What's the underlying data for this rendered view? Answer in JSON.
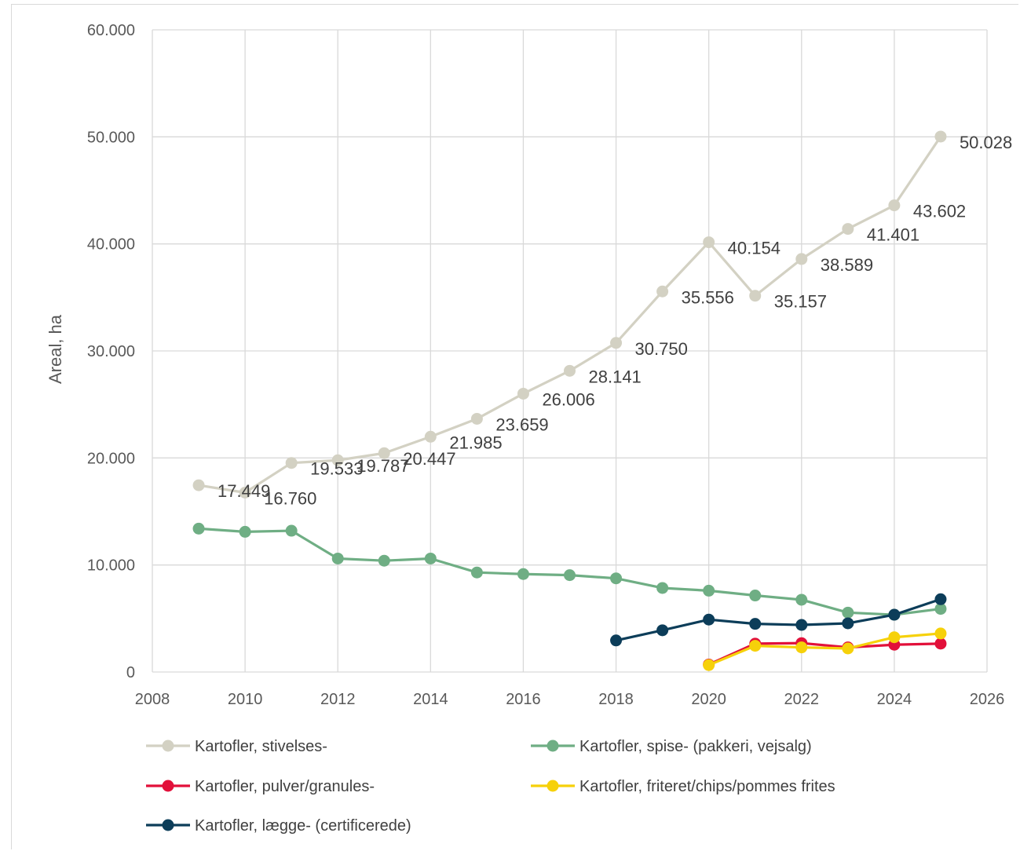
{
  "chart_data": {
    "type": "line",
    "title": "",
    "xlabel": "",
    "ylabel": "Areal, ha",
    "xlim": [
      2008,
      2026
    ],
    "ylim": [
      0,
      60000
    ],
    "x_ticks": [
      "2008",
      "2010",
      "2012",
      "2014",
      "2016",
      "2018",
      "2020",
      "2022",
      "2024",
      "2026"
    ],
    "y_ticks": [
      "0",
      "10.000",
      "20.000",
      "30.000",
      "40.000",
      "50.000",
      "60.000"
    ],
    "grid": true,
    "legend_position": "bottom",
    "series": [
      {
        "name": "Kartofler, stivelses-",
        "color": "#d3d1c3",
        "x": [
          2009,
          2010,
          2011,
          2012,
          2013,
          2014,
          2015,
          2016,
          2017,
          2018,
          2019,
          2020,
          2021,
          2022,
          2023,
          2024,
          2025
        ],
        "values": [
          17449,
          16760,
          19533,
          19787,
          20447,
          21985,
          23659,
          26006,
          28141,
          30750,
          35556,
          40154,
          35157,
          38589,
          41401,
          43602,
          50028
        ],
        "labels": [
          "17.449",
          "16.760",
          "19.533",
          "19.787",
          "20.447",
          "21.985",
          "23.659",
          "26.006",
          "28.141",
          "30.750",
          "35.556",
          "40.154",
          "35.157",
          "38.589",
          "41.401",
          "43.602",
          "50.028"
        ]
      },
      {
        "name": "Kartofler, spise- (pakkeri, vejsalg)",
        "color": "#6fae84",
        "x": [
          2009,
          2010,
          2011,
          2012,
          2013,
          2014,
          2015,
          2016,
          2017,
          2018,
          2019,
          2020,
          2021,
          2022,
          2023,
          2024,
          2025
        ],
        "values": [
          13400,
          13100,
          13200,
          10600,
          10400,
          10600,
          9300,
          9150,
          9050,
          8750,
          7850,
          7600,
          7150,
          6750,
          5550,
          5350,
          5900
        ]
      },
      {
        "name": "Kartofler, pulver/granules-",
        "color": "#e2103a",
        "x": [
          2020,
          2021,
          2022,
          2023,
          2024,
          2025
        ],
        "values": [
          700,
          2650,
          2700,
          2300,
          2550,
          2650
        ]
      },
      {
        "name": "Kartofler, friteret/chips/pommes frites",
        "color": "#f6d10a",
        "x": [
          2020,
          2021,
          2022,
          2023,
          2024,
          2025
        ],
        "values": [
          650,
          2450,
          2300,
          2200,
          3250,
          3600
        ]
      },
      {
        "name": "Kartofler, lægge- (certificerede)",
        "color": "#0c3d59",
        "x": [
          2018,
          2019,
          2020,
          2021,
          2022,
          2023,
          2024,
          2025
        ],
        "values": [
          2950,
          3900,
          4900,
          4500,
          4400,
          4550,
          5350,
          6800
        ]
      }
    ]
  }
}
